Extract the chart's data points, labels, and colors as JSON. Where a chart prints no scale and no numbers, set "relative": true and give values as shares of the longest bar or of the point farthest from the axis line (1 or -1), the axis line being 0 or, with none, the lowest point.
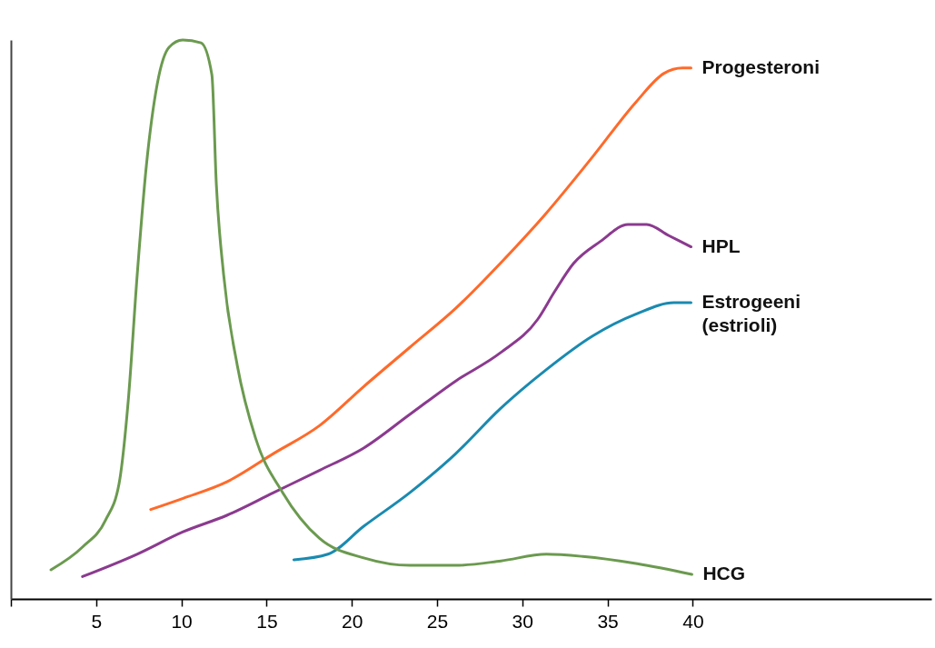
{
  "chart_data": {
    "type": "line",
    "relative": true,
    "xlim": [
      0,
      54
    ],
    "xticks": [
      {
        "value": 0,
        "label": null
      },
      5,
      10,
      15,
      20,
      25,
      30,
      35,
      40
    ],
    "grid": false,
    "legend": false,
    "marker": "none",
    "line_style": "solid",
    "series": [
      {
        "name": "Progesteroni",
        "color": "#ff6a2a",
        "x": [
          8.2,
          10.1,
          12.7,
          15.4,
          18.1,
          20.7,
          23.4,
          26.1,
          28.7,
          31.4,
          34.1,
          36.7,
          38.3,
          39.4,
          39.9
        ],
        "values": [
          0.16,
          0.18,
          0.21,
          0.26,
          0.31,
          0.38,
          0.45,
          0.52,
          0.6,
          0.69,
          0.79,
          0.89,
          0.94,
          0.95,
          0.95
        ]
      },
      {
        "name": "HPL",
        "color": "#8b3a8f",
        "x": [
          4.2,
          7.4,
          10.1,
          12.7,
          15.4,
          18.1,
          20.7,
          23.4,
          26.1,
          28.7,
          30.9,
          31.9,
          33.0,
          34.6,
          36.2,
          37.3,
          38.6,
          39.9
        ],
        "values": [
          0.04,
          0.08,
          0.12,
          0.15,
          0.19,
          0.23,
          0.27,
          0.33,
          0.39,
          0.44,
          0.5,
          0.55,
          0.6,
          0.64,
          0.67,
          0.67,
          0.65,
          0.63
        ]
      },
      {
        "name": "Estrogeeni (estrioli)",
        "color": "#1a8ab0",
        "x": [
          16.6,
          18.6,
          20.7,
          23.4,
          26.1,
          28.7,
          31.4,
          34.1,
          36.7,
          38.9,
          39.9
        ],
        "values": [
          0.07,
          0.08,
          0.13,
          0.19,
          0.26,
          0.34,
          0.41,
          0.47,
          0.51,
          0.53,
          0.53
        ]
      },
      {
        "name": "HCG",
        "color": "#6b9a4f",
        "x": [
          2.35,
          4.21,
          5.55,
          6.35,
          6.88,
          7.41,
          7.95,
          8.59,
          9.28,
          10.08,
          11.15,
          11.79,
          12.05,
          12.48,
          13.28,
          14.35,
          15.95,
          18.08,
          20.75,
          23.41,
          26.08,
          28.75,
          31.41,
          33.55,
          36.75,
          39.95
        ],
        "values": [
          0.052,
          0.093,
          0.141,
          0.207,
          0.353,
          0.58,
          0.776,
          0.922,
          0.987,
          1,
          0.995,
          0.938,
          0.743,
          0.58,
          0.418,
          0.288,
          0.19,
          0.109,
          0.073,
          0.06,
          0.06,
          0.068,
          0.08,
          0.076,
          0.063,
          0.044
        ]
      }
    ]
  }
}
